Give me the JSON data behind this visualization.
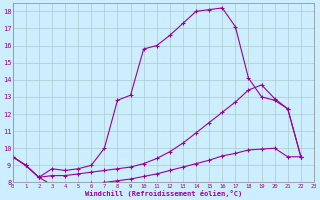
{
  "xlabel": "Windchill (Refroidissement éolien,°C)",
  "bg_color": "#cceeff",
  "line_color": "#990099",
  "grid_color": "#aacccc",
  "xmin": 0,
  "xmax": 23,
  "ymin": 8,
  "ymax": 18.5,
  "yticks": [
    8,
    9,
    10,
    11,
    12,
    13,
    14,
    15,
    16,
    17,
    18
  ],
  "xticks": [
    0,
    1,
    2,
    3,
    4,
    5,
    6,
    7,
    8,
    9,
    10,
    11,
    12,
    13,
    14,
    15,
    16,
    17,
    18,
    19,
    20,
    21,
    22,
    23
  ],
  "curve1_x": [
    0,
    1,
    2,
    3,
    4,
    5,
    6,
    7,
    8,
    9,
    10,
    11,
    12,
    13,
    14,
    15,
    16,
    17,
    18,
    19,
    20,
    21,
    22
  ],
  "curve1_y": [
    9.5,
    9.0,
    8.3,
    8.8,
    8.7,
    8.8,
    9.0,
    10.0,
    12.8,
    13.1,
    15.8,
    16.0,
    16.6,
    17.3,
    18.0,
    18.1,
    18.2,
    17.1,
    14.1,
    13.0,
    12.8,
    12.3,
    9.5
  ],
  "curve2_x": [
    0,
    1,
    2,
    3,
    4,
    5,
    6,
    7,
    8,
    9,
    10,
    11,
    12,
    13,
    14,
    15,
    16,
    17,
    18,
    19,
    20,
    21,
    22
  ],
  "curve2_y": [
    9.5,
    9.0,
    8.3,
    8.4,
    8.4,
    8.5,
    8.6,
    8.7,
    8.8,
    8.9,
    9.1,
    9.4,
    9.8,
    10.3,
    10.9,
    11.5,
    12.1,
    12.7,
    13.4,
    13.7,
    12.9,
    12.3,
    9.5
  ],
  "curve3_x": [
    0,
    1,
    2,
    3,
    4,
    5,
    6,
    7,
    8,
    9,
    10,
    11,
    12,
    13,
    14,
    15,
    16,
    17,
    18,
    19,
    20,
    21,
    22
  ],
  "curve3_y": [
    9.5,
    9.0,
    8.3,
    7.85,
    7.85,
    7.9,
    7.95,
    8.0,
    8.1,
    8.2,
    8.35,
    8.5,
    8.7,
    8.9,
    9.1,
    9.3,
    9.55,
    9.7,
    9.9,
    9.95,
    10.0,
    9.5,
    9.5
  ]
}
